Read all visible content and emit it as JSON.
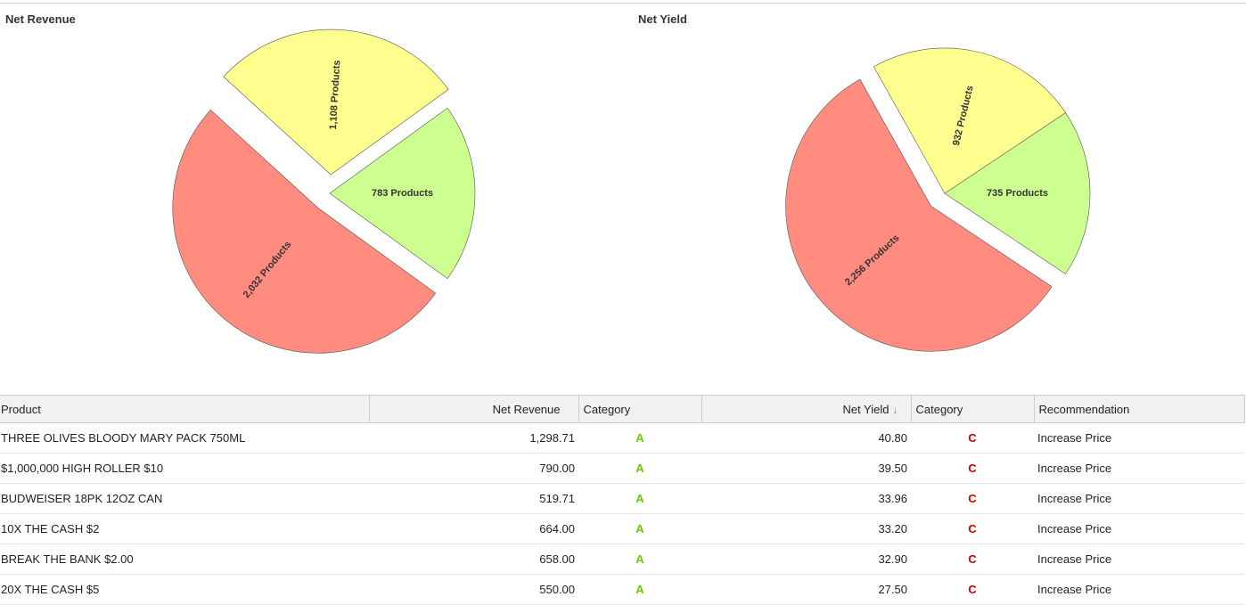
{
  "charts": [
    {
      "title": "Net Revenue",
      "chart_data": {
        "type": "pie",
        "title": "Net Revenue",
        "slices": [
          {
            "label": "783 Products",
            "value": 783,
            "color": "#ccff8f"
          },
          {
            "label": "2,032 Products",
            "value": 2032,
            "color": "#ff8c7f"
          },
          {
            "label": "1,108 Products",
            "value": 1108,
            "color": "#ffff8f"
          }
        ]
      }
    },
    {
      "title": "Net Yield",
      "chart_data": {
        "type": "pie",
        "title": "Net Yield",
        "slices": [
          {
            "label": "735 Products",
            "value": 735,
            "color": "#ccff8f"
          },
          {
            "label": "2,256 Products",
            "value": 2256,
            "color": "#ff8c7f"
          },
          {
            "label": "932 Products",
            "value": 932,
            "color": "#ffff8f"
          }
        ]
      }
    }
  ],
  "table": {
    "headers": {
      "product": "Product",
      "net_revenue": "Net Revenue",
      "category1": "Category",
      "net_yield": "Net Yield",
      "category2": "Category",
      "recommendation": "Recommendation"
    },
    "sort_icon": "arrow-down-icon",
    "rows": [
      {
        "product": "THREE OLIVES BLOODY MARY PACK 750ML",
        "net_revenue": "1,298.71",
        "cat1": "A",
        "net_yield": "40.80",
        "cat2": "C",
        "rec": "Increase Price"
      },
      {
        "product": "$1,000,000 HIGH ROLLER $10",
        "net_revenue": "790.00",
        "cat1": "A",
        "net_yield": "39.50",
        "cat2": "C",
        "rec": "Increase Price"
      },
      {
        "product": "BUDWEISER 18PK 12OZ CAN",
        "net_revenue": "519.71",
        "cat1": "A",
        "net_yield": "33.96",
        "cat2": "C",
        "rec": "Increase Price"
      },
      {
        "product": "10X THE CASH $2",
        "net_revenue": "664.00",
        "cat1": "A",
        "net_yield": "33.20",
        "cat2": "C",
        "rec": "Increase Price"
      },
      {
        "product": "BREAK THE BANK $2.00",
        "net_revenue": "658.00",
        "cat1": "A",
        "net_yield": "32.90",
        "cat2": "C",
        "rec": "Increase Price"
      },
      {
        "product": "20X THE CASH $5",
        "net_revenue": "550.00",
        "cat1": "A",
        "net_yield": "27.50",
        "cat2": "C",
        "rec": "Increase Price"
      }
    ]
  },
  "colors": {
    "category_a": "#66cc00",
    "category_c": "#cc0000",
    "header_bg": "#f1f1f1"
  }
}
